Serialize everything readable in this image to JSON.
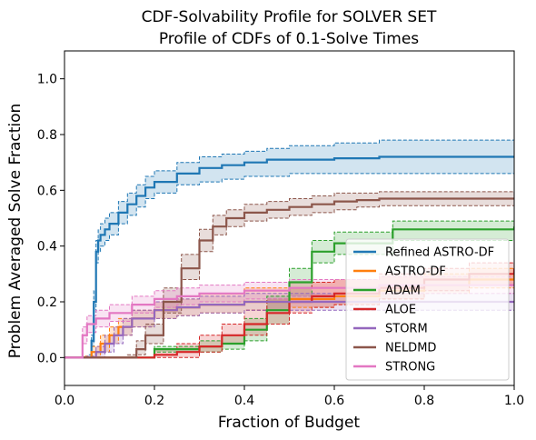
{
  "chart_data": {
    "type": "line",
    "title": "CDF-Solvability Profile for SOLVER SET",
    "subtitle": "Profile of CDFs of 0.1-Solve Times",
    "xlabel": "Fraction of Budget",
    "ylabel": "Problem Averaged Solve Fraction",
    "xlim": [
      0.0,
      1.0
    ],
    "ylim": [
      -0.1,
      1.1
    ],
    "xticks": [
      "0.0",
      "0.2",
      "0.4",
      "0.6",
      "0.8",
      "1.0"
    ],
    "yticks": [
      "0.0",
      "0.2",
      "0.4",
      "0.6",
      "0.8",
      "1.0"
    ],
    "grid": false,
    "legend_position": "lower-right",
    "series": [
      {
        "name": "Refined ASTRO-DF",
        "color": "#1f77b4",
        "x": [
          0,
          0.055,
          0.06,
          0.065,
          0.07,
          0.075,
          0.08,
          0.09,
          0.1,
          0.12,
          0.14,
          0.16,
          0.18,
          0.2,
          0.25,
          0.3,
          0.35,
          0.4,
          0.45,
          0.5,
          0.6,
          0.7,
          0.8,
          0.9,
          1.0
        ],
        "y": [
          0,
          0,
          0.06,
          0.2,
          0.38,
          0.42,
          0.44,
          0.46,
          0.48,
          0.52,
          0.55,
          0.58,
          0.61,
          0.63,
          0.66,
          0.68,
          0.69,
          0.7,
          0.71,
          0.71,
          0.715,
          0.72,
          0.72,
          0.72,
          0.72
        ],
        "lower": [
          0,
          0,
          0.04,
          0.16,
          0.34,
          0.38,
          0.4,
          0.42,
          0.44,
          0.48,
          0.51,
          0.54,
          0.57,
          0.59,
          0.62,
          0.63,
          0.64,
          0.65,
          0.65,
          0.66,
          0.66,
          0.66,
          0.66,
          0.66,
          0.66
        ],
        "upper": [
          0,
          0.01,
          0.08,
          0.24,
          0.42,
          0.46,
          0.48,
          0.5,
          0.52,
          0.56,
          0.59,
          0.62,
          0.65,
          0.67,
          0.7,
          0.72,
          0.73,
          0.74,
          0.75,
          0.76,
          0.77,
          0.78,
          0.78,
          0.78,
          0.78
        ]
      },
      {
        "name": "ASTRO-DF",
        "color": "#ff7f0e",
        "x": [
          0,
          0.04,
          0.06,
          0.08,
          0.1,
          0.12,
          0.15,
          0.2,
          0.25,
          0.3,
          0.4,
          0.5,
          0.6,
          0.7,
          0.8,
          0.9,
          1.0
        ],
        "y": [
          0,
          0,
          0.02,
          0.05,
          0.08,
          0.11,
          0.14,
          0.17,
          0.18,
          0.19,
          0.2,
          0.21,
          0.22,
          0.24,
          0.26,
          0.28,
          0.31
        ],
        "lower": [
          0,
          0,
          0.0,
          0.02,
          0.05,
          0.08,
          0.11,
          0.14,
          0.15,
          0.16,
          0.17,
          0.18,
          0.19,
          0.21,
          0.23,
          0.25,
          0.28
        ],
        "upper": [
          0,
          0.005,
          0.04,
          0.08,
          0.11,
          0.14,
          0.17,
          0.2,
          0.21,
          0.23,
          0.25,
          0.27,
          0.28,
          0.29,
          0.3,
          0.32,
          0.35
        ]
      },
      {
        "name": "ADAM",
        "color": "#2ca02c",
        "x": [
          0,
          0.2,
          0.3,
          0.35,
          0.4,
          0.45,
          0.5,
          0.55,
          0.6,
          0.7,
          0.73,
          0.8,
          0.9,
          1.0
        ],
        "y": [
          0,
          0.03,
          0.04,
          0.05,
          0.1,
          0.17,
          0.27,
          0.38,
          0.41,
          0.41,
          0.46,
          0.46,
          0.46,
          0.47
        ],
        "lower": [
          0,
          0.02,
          0.02,
          0.03,
          0.06,
          0.12,
          0.22,
          0.34,
          0.37,
          0.37,
          0.42,
          0.42,
          0.42,
          0.43
        ],
        "upper": [
          0,
          0.04,
          0.06,
          0.08,
          0.14,
          0.22,
          0.32,
          0.42,
          0.45,
          0.45,
          0.49,
          0.49,
          0.49,
          0.5
        ]
      },
      {
        "name": "ALOE",
        "color": "#d62728",
        "x": [
          0,
          0.15,
          0.2,
          0.25,
          0.3,
          0.35,
          0.4,
          0.45,
          0.5,
          0.55,
          0.6,
          0.7,
          0.8,
          0.9,
          1.0
        ],
        "y": [
          0,
          0,
          0.01,
          0.02,
          0.04,
          0.08,
          0.12,
          0.16,
          0.2,
          0.22,
          0.23,
          0.25,
          0.28,
          0.3,
          0.32
        ],
        "lower": [
          0,
          0,
          0.0,
          0.0,
          0.02,
          0.05,
          0.08,
          0.12,
          0.16,
          0.18,
          0.19,
          0.21,
          0.24,
          0.26,
          0.28
        ],
        "upper": [
          0,
          0.0,
          0.03,
          0.05,
          0.08,
          0.12,
          0.17,
          0.21,
          0.25,
          0.27,
          0.28,
          0.3,
          0.32,
          0.34,
          0.35
        ]
      },
      {
        "name": "STORM",
        "color": "#9467bd",
        "x": [
          0,
          0.05,
          0.07,
          0.09,
          0.11,
          0.13,
          0.15,
          0.2,
          0.25,
          0.3,
          0.4,
          0.5,
          0.6,
          0.7,
          0.8,
          0.9,
          1.0
        ],
        "y": [
          0,
          0,
          0.02,
          0.05,
          0.08,
          0.11,
          0.14,
          0.17,
          0.18,
          0.19,
          0.2,
          0.2,
          0.2,
          0.2,
          0.2,
          0.2,
          0.2
        ],
        "lower": [
          0,
          0,
          0.0,
          0.02,
          0.05,
          0.08,
          0.11,
          0.14,
          0.15,
          0.16,
          0.17,
          0.17,
          0.17,
          0.17,
          0.17,
          0.17,
          0.17
        ],
        "upper": [
          0,
          0.005,
          0.04,
          0.08,
          0.11,
          0.14,
          0.17,
          0.2,
          0.21,
          0.22,
          0.23,
          0.23,
          0.23,
          0.23,
          0.23,
          0.23,
          0.23
        ]
      },
      {
        "name": "NELDMD",
        "color": "#8c564b",
        "x": [
          0,
          0.14,
          0.16,
          0.18,
          0.22,
          0.26,
          0.3,
          0.33,
          0.36,
          0.4,
          0.45,
          0.5,
          0.55,
          0.6,
          0.65,
          0.7,
          0.8,
          0.9,
          1.0
        ],
        "y": [
          0,
          0,
          0.03,
          0.08,
          0.2,
          0.32,
          0.42,
          0.47,
          0.5,
          0.52,
          0.53,
          0.54,
          0.55,
          0.56,
          0.565,
          0.57,
          0.57,
          0.57,
          0.57
        ],
        "lower": [
          0,
          0,
          0.01,
          0.05,
          0.16,
          0.28,
          0.38,
          0.44,
          0.47,
          0.49,
          0.5,
          0.51,
          0.52,
          0.53,
          0.54,
          0.545,
          0.545,
          0.545,
          0.545
        ],
        "upper": [
          0,
          0.01,
          0.06,
          0.12,
          0.25,
          0.37,
          0.46,
          0.51,
          0.53,
          0.55,
          0.56,
          0.57,
          0.58,
          0.59,
          0.59,
          0.595,
          0.595,
          0.595,
          0.595
        ]
      },
      {
        "name": "STRONG",
        "color": "#e377c2",
        "x": [
          0,
          0.04,
          0.05,
          0.07,
          0.1,
          0.15,
          0.2,
          0.25,
          0.3,
          0.4,
          0.5,
          0.6,
          0.7,
          0.8,
          0.9,
          1.0
        ],
        "y": [
          0,
          0.08,
          0.12,
          0.14,
          0.16,
          0.19,
          0.21,
          0.22,
          0.23,
          0.24,
          0.25,
          0.25,
          0.26,
          0.26,
          0.26,
          0.26
        ],
        "lower": [
          0,
          0.05,
          0.09,
          0.11,
          0.13,
          0.16,
          0.18,
          0.19,
          0.2,
          0.21,
          0.22,
          0.22,
          0.23,
          0.23,
          0.23,
          0.23
        ],
        "upper": [
          0,
          0.11,
          0.15,
          0.17,
          0.19,
          0.22,
          0.24,
          0.25,
          0.26,
          0.27,
          0.28,
          0.28,
          0.29,
          0.29,
          0.29,
          0.29
        ]
      }
    ]
  }
}
